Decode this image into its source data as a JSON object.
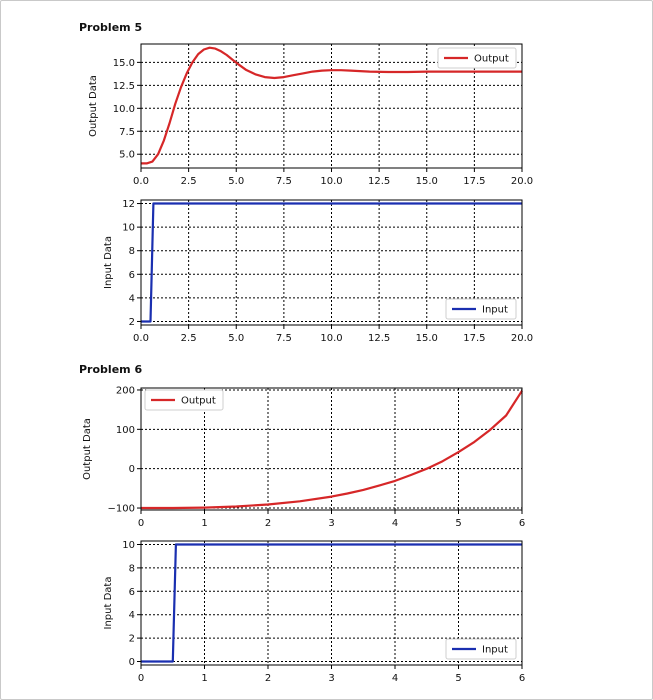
{
  "headings": {
    "problem5": "Problem 5",
    "problem6": "Problem 6"
  },
  "colors": {
    "output": "#d62728",
    "input": "#1a2fb0",
    "grid": "#000000"
  },
  "chart_data": [
    {
      "id": "p5-output",
      "type": "line",
      "xlabel": "",
      "ylabel": "Output Data",
      "xlim": [
        0,
        20
      ],
      "ylim": [
        3.5,
        17.0
      ],
      "xticks": [
        0,
        2.5,
        5,
        7.5,
        10,
        12.5,
        15,
        17.5,
        20
      ],
      "xtick_labels": [
        "0.0",
        "2.5",
        "5.0",
        "7.5",
        "10.0",
        "12.5",
        "15.0",
        "17.5",
        "20.0"
      ],
      "yticks": [
        5,
        7.5,
        10,
        12.5,
        15
      ],
      "ytick_labels": [
        "5.0",
        "7.5",
        "10.0",
        "12.5",
        "15.0"
      ],
      "grid": true,
      "legend": "top-right",
      "series": [
        {
          "name": "Output",
          "color": "#d62728",
          "x": [
            0,
            0.3,
            0.6,
            0.9,
            1.2,
            1.5,
            1.8,
            2.1,
            2.4,
            2.7,
            3.0,
            3.3,
            3.6,
            3.9,
            4.2,
            4.5,
            4.8,
            5.1,
            5.5,
            6.0,
            6.5,
            7.0,
            7.5,
            8.0,
            8.5,
            9.0,
            9.5,
            10.0,
            10.5,
            11.0,
            12.0,
            13.0,
            14.0,
            15.0,
            16.0,
            17.0,
            18.0,
            20.0
          ],
          "y": [
            4.0,
            4.0,
            4.2,
            5.0,
            6.5,
            8.4,
            10.5,
            12.3,
            13.8,
            15.0,
            15.9,
            16.4,
            16.6,
            16.5,
            16.2,
            15.8,
            15.3,
            14.8,
            14.2,
            13.7,
            13.4,
            13.3,
            13.4,
            13.6,
            13.8,
            14.0,
            14.1,
            14.15,
            14.15,
            14.1,
            14.0,
            13.95,
            13.95,
            14.0,
            14.0,
            14.0,
            14.0,
            14.0
          ]
        }
      ]
    },
    {
      "id": "p5-input",
      "type": "line",
      "xlabel": "",
      "ylabel": "Input Data",
      "xlim": [
        0,
        20
      ],
      "ylim": [
        1.7,
        12.3
      ],
      "xticks": [
        0,
        2.5,
        5,
        7.5,
        10,
        12.5,
        15,
        17.5,
        20
      ],
      "xtick_labels": [
        "0.0",
        "2.5",
        "5.0",
        "7.5",
        "10.0",
        "12.5",
        "15.0",
        "17.5",
        "20.0"
      ],
      "yticks": [
        2,
        4,
        6,
        8,
        10,
        12
      ],
      "ytick_labels": [
        "2",
        "4",
        "6",
        "8",
        "10",
        "12"
      ],
      "grid": true,
      "legend": "bottom-right",
      "series": [
        {
          "name": "Input",
          "color": "#1a2fb0",
          "x": [
            0,
            0.5,
            0.5,
            0.65,
            20
          ],
          "y": [
            2,
            2,
            2,
            12,
            12
          ]
        }
      ]
    },
    {
      "id": "p6-output",
      "type": "line",
      "xlabel": "",
      "ylabel": "Output Data",
      "xlim": [
        0,
        6
      ],
      "ylim": [
        -105,
        205
      ],
      "xticks": [
        0,
        1,
        2,
        3,
        4,
        5,
        6
      ],
      "xtick_labels": [
        "0",
        "1",
        "2",
        "3",
        "4",
        "5",
        "6"
      ],
      "yticks": [
        -100,
        0,
        100,
        200
      ],
      "ytick_labels": [
        "−100",
        "0",
        "100",
        "200"
      ],
      "grid": true,
      "legend": "top-left",
      "series": [
        {
          "name": "Output",
          "color": "#d62728",
          "x": [
            0,
            0.5,
            1.0,
            1.5,
            2.0,
            2.5,
            3.0,
            3.25,
            3.5,
            3.75,
            4.0,
            4.25,
            4.5,
            4.75,
            5.0,
            5.25,
            5.5,
            5.75,
            6.0
          ],
          "y": [
            -100,
            -100,
            -99,
            -96,
            -91,
            -83,
            -71,
            -63,
            -54,
            -43,
            -31,
            -16,
            0,
            19,
            42,
            68,
            99,
            135,
            198
          ]
        }
      ]
    },
    {
      "id": "p6-input",
      "type": "line",
      "xlabel": "",
      "ylabel": "Input Data",
      "xlim": [
        0,
        6
      ],
      "ylim": [
        -0.3,
        10.3
      ],
      "xticks": [
        0,
        1,
        2,
        3,
        4,
        5,
        6
      ],
      "xtick_labels": [
        "0",
        "1",
        "2",
        "3",
        "4",
        "5",
        "6"
      ],
      "yticks": [
        0,
        2,
        4,
        6,
        8,
        10
      ],
      "ytick_labels": [
        "0",
        "2",
        "4",
        "6",
        "8",
        "10"
      ],
      "grid": true,
      "legend": "bottom-right",
      "series": [
        {
          "name": "Input",
          "color": "#1a2fb0",
          "x": [
            0,
            0.5,
            0.5,
            0.55,
            6
          ],
          "y": [
            0,
            0,
            0,
            10,
            10
          ]
        }
      ]
    }
  ]
}
